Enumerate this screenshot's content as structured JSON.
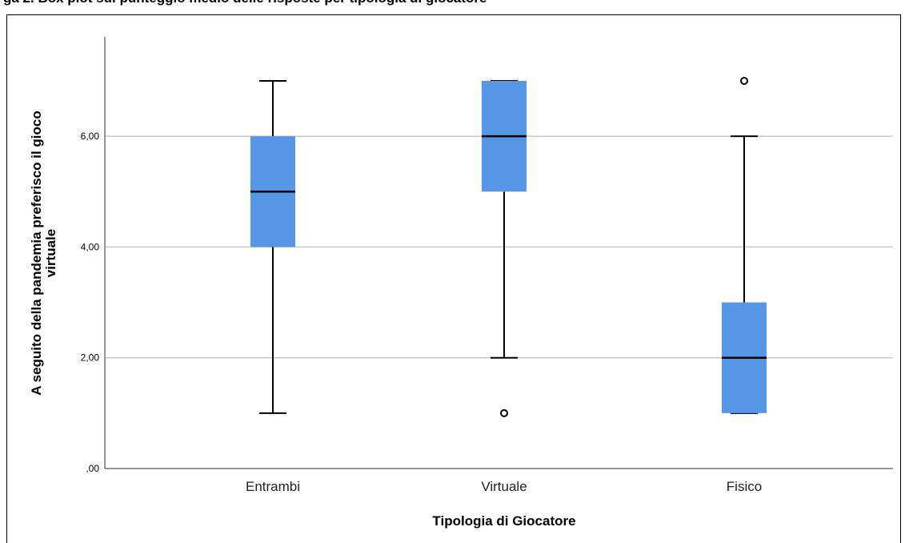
{
  "caption": "ga 2. Box plot sul punteggio medio delle risposte per tipologia di giocatore",
  "chart_data": {
    "type": "boxplot",
    "title": "",
    "xlabel": "Tipologia di Giocatore",
    "ylabel_lines": [
      "A seguito della pandemia preferisco il gioco",
      "virtuale"
    ],
    "ylim": [
      0,
      7.5
    ],
    "yticks": [
      0,
      2,
      4,
      6
    ],
    "ytick_labels": [
      ",00",
      "2,00",
      "4,00",
      "6,00"
    ],
    "grid": true,
    "box_color": "#5596e6",
    "categories": [
      "Entrambi",
      "Virtuale",
      "Fisico"
    ],
    "boxes": [
      {
        "whisker_low": 1,
        "q1": 4,
        "median": 5,
        "q3": 6,
        "whisker_high": 7,
        "outliers": []
      },
      {
        "whisker_low": 2,
        "q1": 5,
        "median": 6,
        "q3": 7,
        "whisker_high": 7,
        "outliers": [
          1
        ]
      },
      {
        "whisker_low": 1,
        "q1": 1,
        "median": 2,
        "q3": 3,
        "whisker_high": 6,
        "outliers": [
          7
        ]
      }
    ]
  }
}
